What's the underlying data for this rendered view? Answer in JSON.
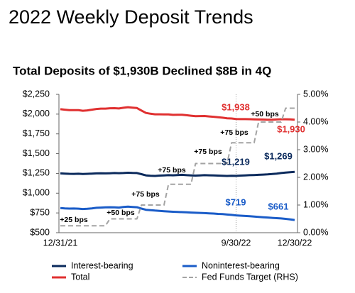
{
  "chart_data": {
    "type": "line",
    "title": "2022 Weekly Deposit Trends",
    "subtitle": "Total Deposits of $1,930B Declined $8B in 4Q",
    "categories": [
      "12/31/21",
      null,
      null,
      null,
      null,
      null,
      null,
      null,
      null,
      null,
      null,
      null,
      null,
      null,
      null,
      null,
      null,
      null,
      null,
      null,
      null,
      null,
      null,
      null,
      null,
      null,
      null,
      null,
      null,
      null,
      null,
      null,
      null,
      null,
      null,
      null,
      null,
      null,
      null,
      "9/30/22",
      null,
      null,
      null,
      null,
      null,
      null,
      null,
      null,
      null,
      null,
      null,
      null,
      "12/30/22"
    ],
    "ylim": [
      500,
      2250
    ],
    "yticks": [
      {
        "value": 500,
        "label": "$500"
      },
      {
        "value": 750,
        "label": "$750"
      },
      {
        "value": 1000,
        "label": "$1,000"
      },
      {
        "value": 1250,
        "label": "$1,250"
      },
      {
        "value": 1500,
        "label": "$1,500"
      },
      {
        "value": 1750,
        "label": "$1,750"
      },
      {
        "value": 2000,
        "label": "$2,000"
      },
      {
        "value": 2250,
        "label": "$2,250"
      }
    ],
    "y2lim": [
      0,
      5
    ],
    "y2ticks": [
      {
        "value": 0,
        "label": "0.00%"
      },
      {
        "value": 1,
        "label": "1.00%"
      },
      {
        "value": 2,
        "label": "2.00%"
      },
      {
        "value": 3,
        "label": "3.00%"
      },
      {
        "value": 4,
        "label": "4.00%"
      },
      {
        "value": 5,
        "label": "5.00%"
      }
    ],
    "legend": "bottom",
    "series": [
      {
        "name": "Interest-bearing",
        "color": "#0b2a5c",
        "values": [
          1250,
          1248,
          1245,
          1244,
          1246,
          1243,
          1245,
          1248,
          1250,
          1252,
          1250,
          1252,
          1255,
          1253,
          1255,
          1258,
          1256,
          1255,
          1240,
          1225,
          1220,
          1218,
          1222,
          1225,
          1228,
          1226,
          1230,
          1232,
          1228,
          1225,
          1222,
          1225,
          1228,
          1226,
          1224,
          1222,
          1220,
          1218,
          1220,
          1219,
          1222,
          1225,
          1228,
          1230,
          1232,
          1235,
          1238,
          1242,
          1248,
          1255,
          1260,
          1265,
          1269
        ],
        "value_labels": [
          null,
          null,
          null,
          null,
          null,
          null,
          null,
          null,
          null,
          null,
          null,
          null,
          null,
          null,
          null,
          null,
          null,
          null,
          null,
          null,
          null,
          null,
          null,
          null,
          null,
          null,
          null,
          null,
          null,
          null,
          null,
          null,
          null,
          null,
          null,
          null,
          null,
          null,
          null,
          "$1,219",
          null,
          null,
          null,
          null,
          null,
          null,
          null,
          null,
          null,
          null,
          null,
          null,
          "$1,269"
        ]
      },
      {
        "name": "Noninterest-bearing",
        "color": "#1a5cc8",
        "values": [
          812,
          808,
          805,
          806,
          804,
          800,
          802,
          808,
          815,
          818,
          820,
          822,
          820,
          818,
          825,
          830,
          826,
          822,
          805,
          790,
          785,
          780,
          776,
          772,
          768,
          765,
          762,
          760,
          758,
          755,
          752,
          750,
          748,
          745,
          742,
          738,
          735,
          730,
          725,
          719,
          715,
          712,
          708,
          704,
          700,
          696,
          692,
          688,
          684,
          680,
          675,
          668,
          661
        ],
        "value_labels": [
          null,
          null,
          null,
          null,
          null,
          null,
          null,
          null,
          null,
          null,
          null,
          null,
          null,
          null,
          null,
          null,
          null,
          null,
          null,
          null,
          null,
          null,
          null,
          null,
          null,
          null,
          null,
          null,
          null,
          null,
          null,
          null,
          null,
          null,
          null,
          null,
          null,
          null,
          null,
          "$719",
          null,
          null,
          null,
          null,
          null,
          null,
          null,
          null,
          null,
          null,
          null,
          null,
          "$661"
        ]
      },
      {
        "name": "Total",
        "color": "#e03030",
        "values": [
          2062,
          2056,
          2050,
          2050,
          2050,
          2043,
          2047,
          2056,
          2065,
          2070,
          2070,
          2074,
          2075,
          2071,
          2080,
          2088,
          2082,
          2077,
          2045,
          2015,
          2005,
          1998,
          1998,
          1997,
          1996,
          1991,
          1992,
          1992,
          1986,
          1980,
          1974,
          1975,
          1976,
          1971,
          1966,
          1960,
          1955,
          1948,
          1945,
          1938,
          1937,
          1937,
          1936,
          1934,
          1932,
          1931,
          1930,
          1930,
          1932,
          1935,
          1935,
          1933,
          1930
        ],
        "value_labels": [
          null,
          null,
          null,
          null,
          null,
          null,
          null,
          null,
          null,
          null,
          null,
          null,
          null,
          null,
          null,
          null,
          null,
          null,
          null,
          null,
          null,
          null,
          null,
          null,
          null,
          null,
          null,
          null,
          null,
          null,
          null,
          null,
          null,
          null,
          null,
          null,
          null,
          null,
          null,
          "$1,938",
          null,
          null,
          null,
          null,
          null,
          null,
          null,
          null,
          null,
          null,
          null,
          null,
          "$1,930"
        ]
      },
      {
        "name": "Fed Funds Target (RHS)",
        "color": "#a3a3a3",
        "axis": "y2",
        "dashed": true,
        "values": [
          0.25,
          0.25,
          0.25,
          0.25,
          0.25,
          0.25,
          0.25,
          0.25,
          0.25,
          0.25,
          0.25,
          0.5,
          0.5,
          0.5,
          0.5,
          0.5,
          0.5,
          0.5,
          1.0,
          1.0,
          1.0,
          1.0,
          1.0,
          1.0,
          1.75,
          1.75,
          1.75,
          1.75,
          1.75,
          1.75,
          2.5,
          2.5,
          2.5,
          2.5,
          2.5,
          2.5,
          2.5,
          2.5,
          3.25,
          3.25,
          3.25,
          3.25,
          3.25,
          3.25,
          4.0,
          4.0,
          4.0,
          4.0,
          4.0,
          4.0,
          4.5,
          4.5,
          4.5
        ]
      }
    ],
    "annotations": [
      "+25 bps",
      "+50 bps",
      "+75 bps",
      "+75 bps",
      "+75 bps",
      "+75 bps",
      "+50 bps"
    ]
  }
}
